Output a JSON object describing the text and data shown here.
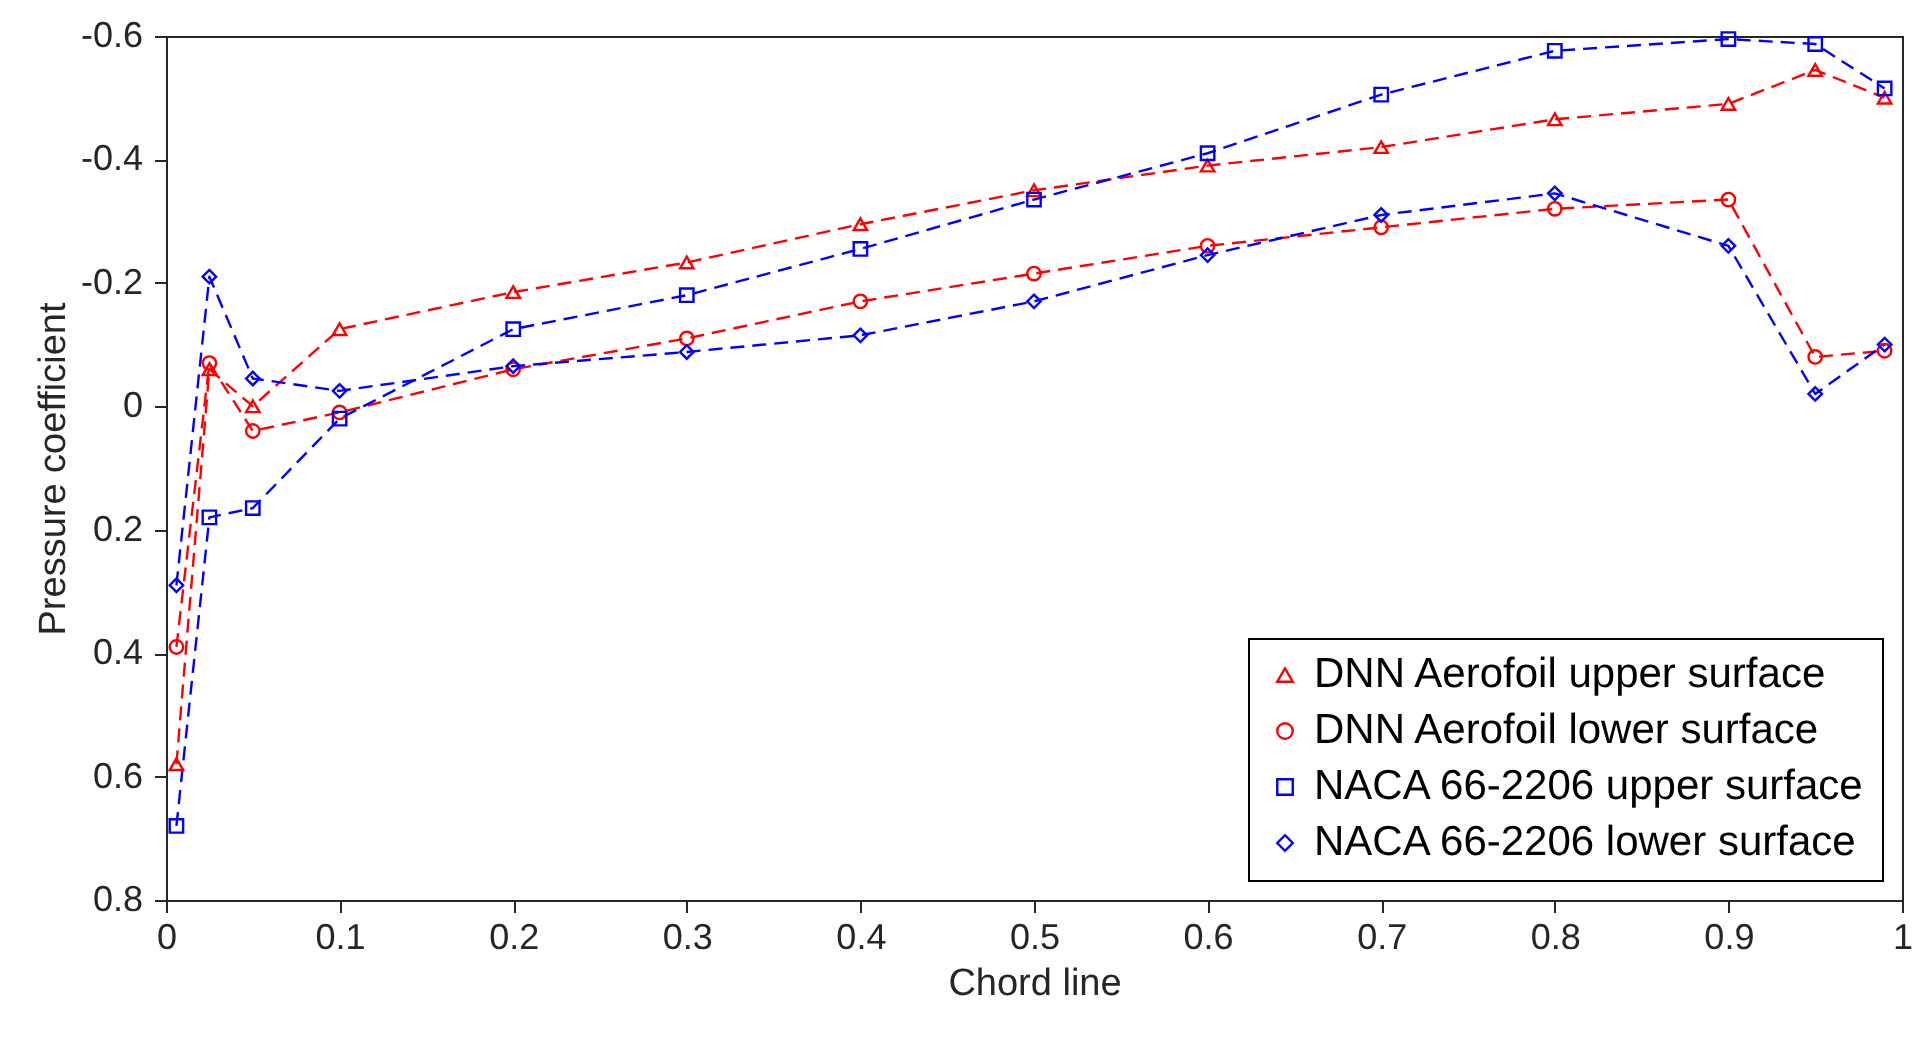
{
  "chart_data": {
    "type": "line",
    "xlabel": "Chord line",
    "ylabel": "Pressure coefficient",
    "x": [
      0.006,
      0.025,
      0.05,
      0.1,
      0.2,
      0.3,
      0.4,
      0.5,
      0.6,
      0.7,
      0.8,
      0.9,
      0.95,
      0.99
    ],
    "series": [
      {
        "name": "DNN Aerofoil upper surface",
        "color": "#ff0000",
        "marker": "triangle",
        "values": [
          0.58,
          -0.06,
          0,
          -0.125,
          -0.185,
          -0.233,
          -0.295,
          -0.35,
          -0.39,
          -0.42,
          -0.465,
          -0.49,
          -0.545,
          -0.5
        ]
      },
      {
        "name": "DNN Aerofoil lower surface",
        "color": "#ff0000",
        "marker": "circle",
        "values": [
          0.39,
          -0.07,
          0.04,
          0.01,
          -0.06,
          -0.11,
          -0.17,
          -0.215,
          -0.26,
          -0.29,
          -0.32,
          -0.335,
          -0.08,
          -0.09
        ]
      },
      {
        "name": "NACA 66-2206 upper surface",
        "color": "#0000ff",
        "marker": "square",
        "values": [
          0.68,
          0.18,
          0.165,
          0.02,
          -0.125,
          -0.18,
          -0.255,
          -0.335,
          -0.41,
          -0.505,
          -0.576,
          -0.595,
          -0.587,
          -0.515
        ]
      },
      {
        "name": "NACA 66-2206 lower surface",
        "color": "#0000ff",
        "marker": "diamond",
        "values": [
          0.29,
          -0.21,
          -0.045,
          -0.025,
          -0.065,
          -0.088,
          -0.115,
          -0.17,
          -0.245,
          -0.31,
          -0.345,
          -0.26,
          -0.02,
          -0.1
        ]
      }
    ],
    "xlim": [
      0,
      1
    ],
    "xticks": [
      0,
      0.1,
      0.2,
      0.3,
      0.4,
      0.5,
      0.6,
      0.7,
      0.8,
      0.9,
      1
    ],
    "ylim": [
      0.8,
      -0.6
    ],
    "yticks": [
      -0.6,
      -0.4,
      -0.2,
      0,
      0.2,
      0.4,
      0.6,
      0.8
    ],
    "grid": false,
    "legend": "bottom right",
    "line_style": "dashed"
  }
}
